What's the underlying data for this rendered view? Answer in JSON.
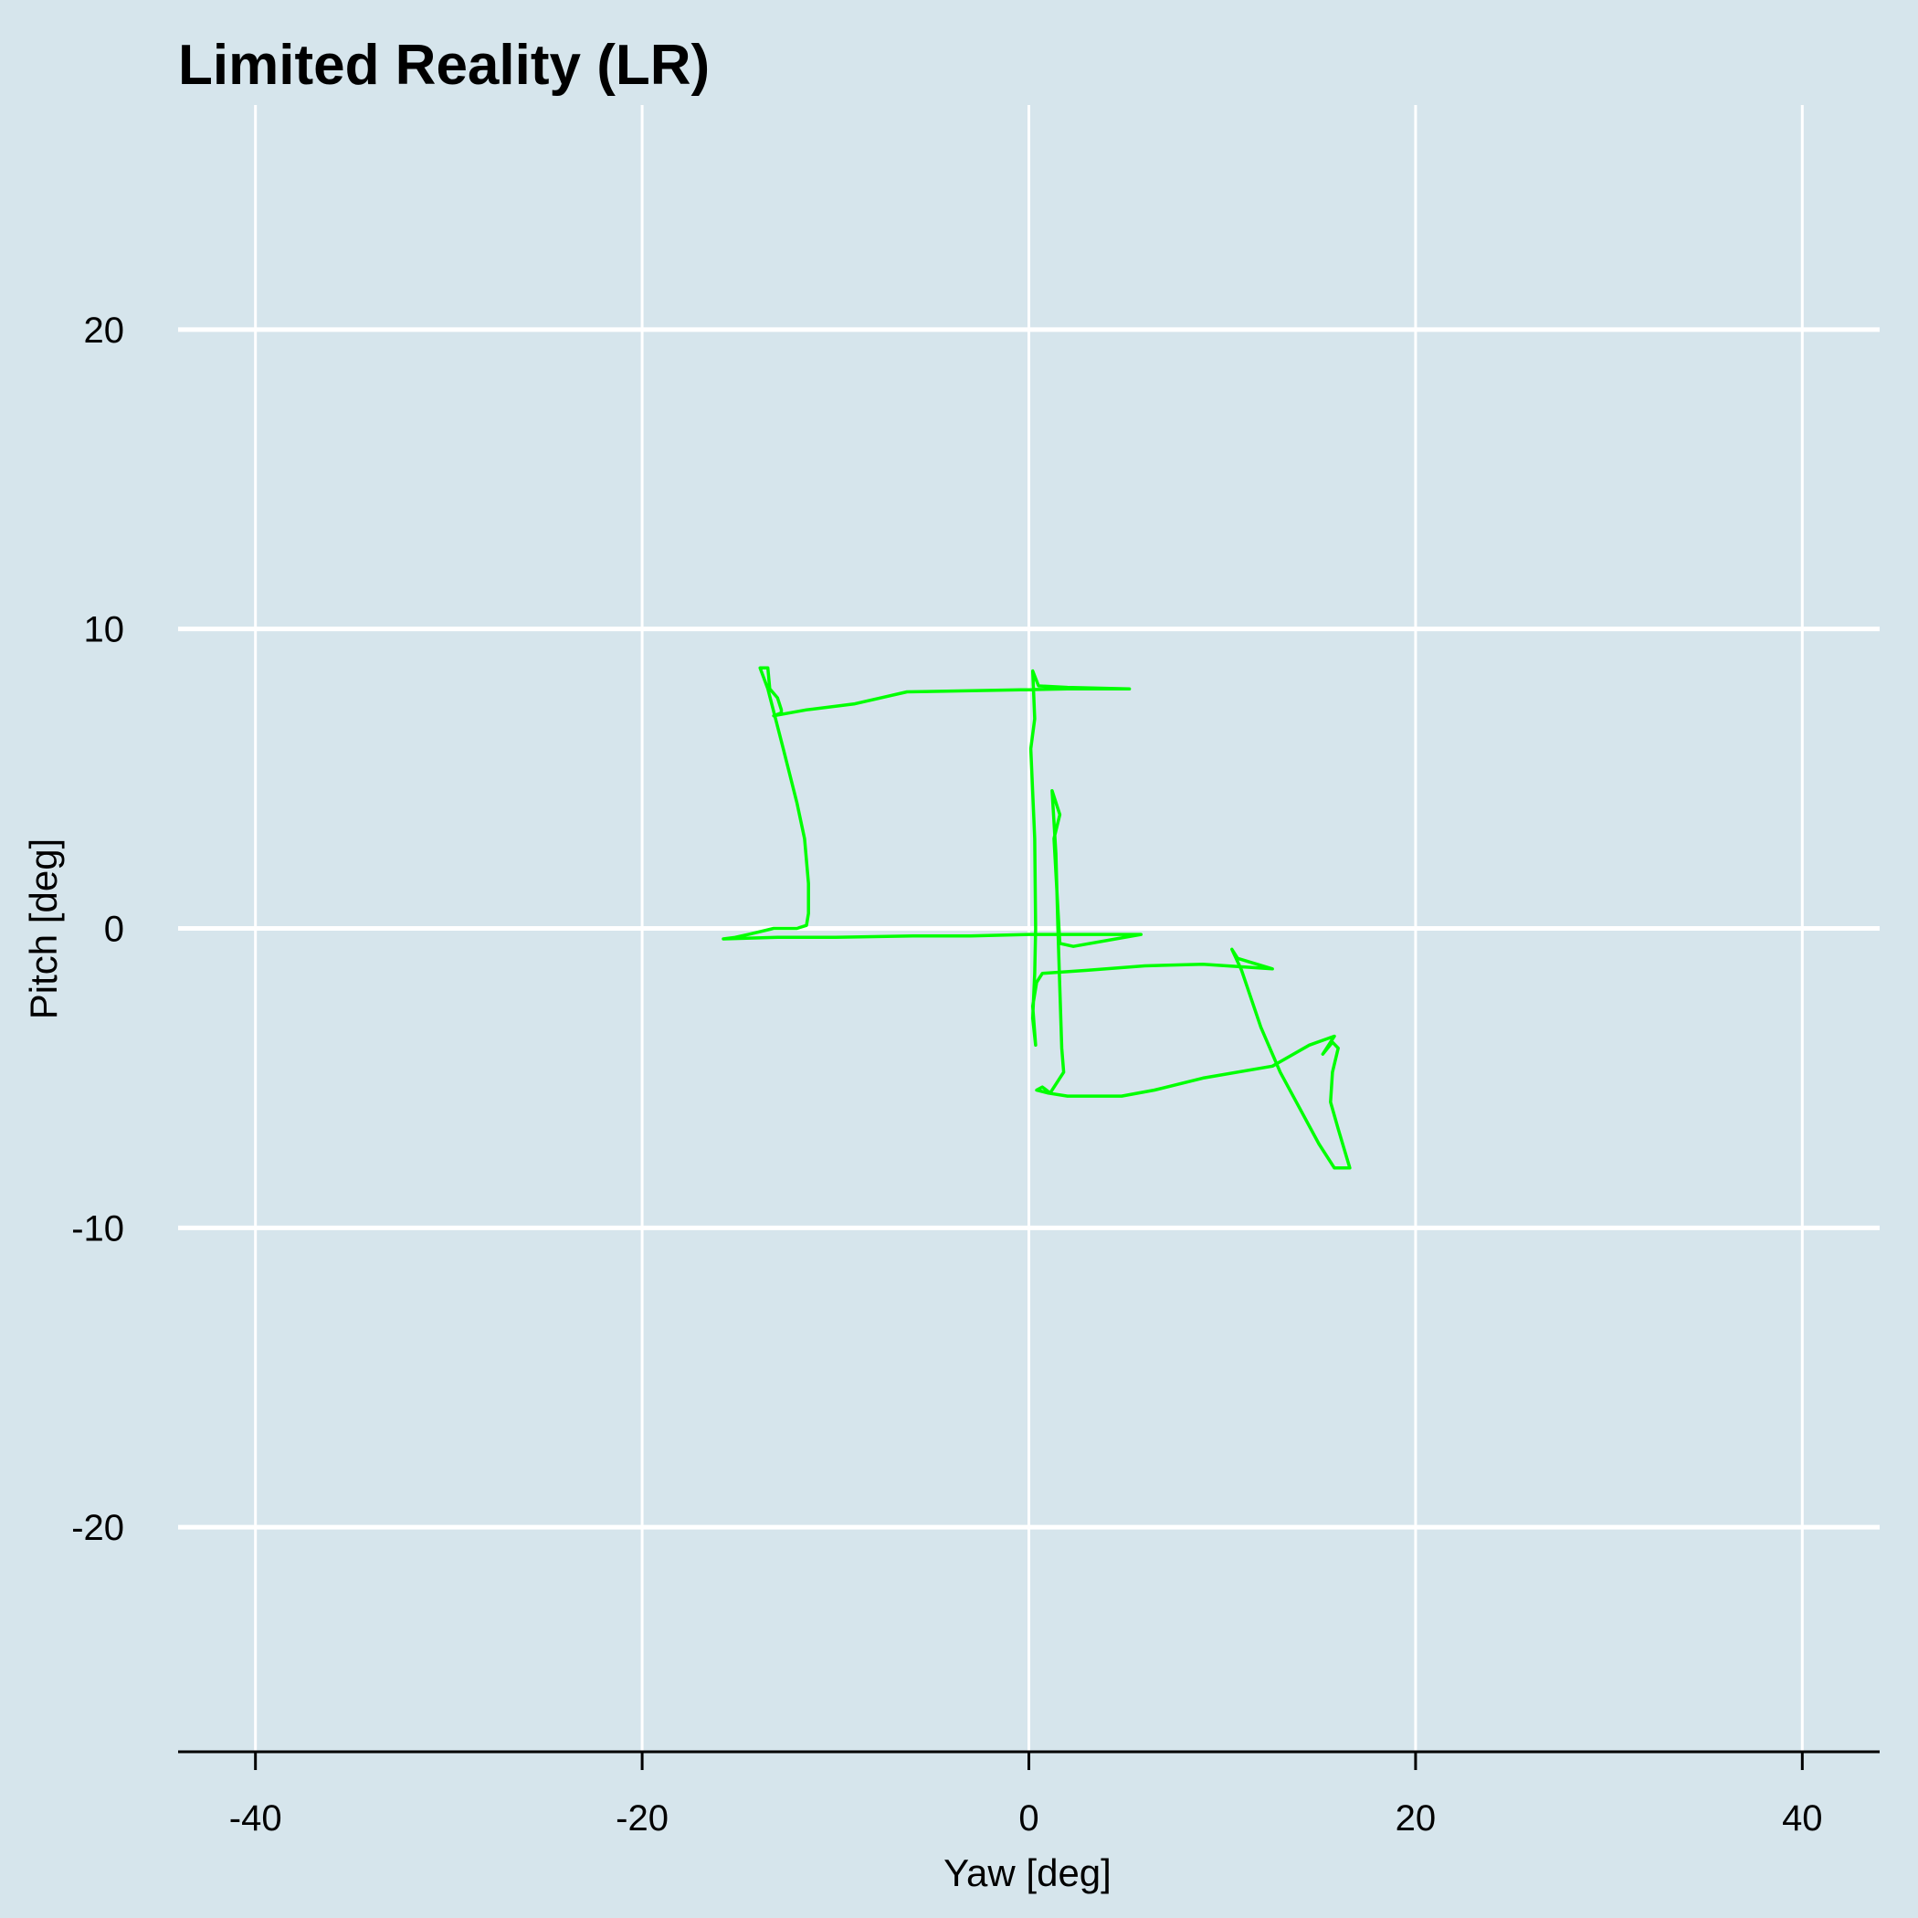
{
  "chart_data": {
    "type": "line",
    "title": "Limited Reality (LR)",
    "xlabel": "Yaw [deg]",
    "ylabel": "Pitch [deg]",
    "xlim": [
      -44,
      44
    ],
    "ylim": [
      -27.5,
      27.5
    ],
    "xticks": [
      -40,
      -20,
      0,
      20,
      40
    ],
    "yticks": [
      -20,
      -10,
      0,
      10,
      20
    ],
    "grid": true,
    "background_color": "#d6e5ec",
    "grid_color": "#ffffff",
    "series": [
      {
        "color": "#00ff00",
        "points": [
          [
            5.2,
            8.0
          ],
          [
            2.0,
            8.05
          ],
          [
            0.5,
            8.1
          ],
          [
            0.2,
            8.6
          ],
          [
            0.3,
            7.0
          ],
          [
            0.1,
            6.0
          ],
          [
            0.3,
            3.0
          ],
          [
            0.35,
            0.0
          ],
          [
            0.3,
            -1.5
          ],
          [
            0.2,
            -3.0
          ],
          [
            0.35,
            -3.9
          ],
          [
            0.2,
            -2.6
          ],
          [
            0.4,
            -1.8
          ],
          [
            0.7,
            -1.5
          ],
          [
            3.0,
            -1.4
          ],
          [
            6.0,
            -1.25
          ],
          [
            9.0,
            -1.2
          ],
          [
            12.6,
            -1.35
          ],
          [
            10.8,
            -1.0
          ],
          [
            10.5,
            -0.7
          ],
          [
            11.0,
            -1.4
          ],
          [
            12.0,
            -3.3
          ],
          [
            13.0,
            -4.8
          ],
          [
            14.0,
            -6.0
          ],
          [
            15.0,
            -7.2
          ],
          [
            15.8,
            -8.0
          ],
          [
            16.6,
            -8.0
          ],
          [
            16.0,
            -6.7
          ],
          [
            15.6,
            -5.8
          ],
          [
            15.7,
            -4.8
          ],
          [
            16.0,
            -4.0
          ],
          [
            15.7,
            -3.8
          ],
          [
            15.2,
            -4.2
          ],
          [
            15.8,
            -3.6
          ],
          [
            14.5,
            -3.9
          ],
          [
            12.6,
            -4.6
          ],
          [
            9.0,
            -5.0
          ],
          [
            6.5,
            -5.4
          ],
          [
            4.8,
            -5.6
          ],
          [
            2.0,
            -5.6
          ],
          [
            1.0,
            -5.5
          ],
          [
            0.4,
            -5.4
          ],
          [
            0.7,
            -5.3
          ],
          [
            1.1,
            -5.5
          ],
          [
            1.8,
            -4.8
          ],
          [
            1.7,
            -4.0
          ],
          [
            1.6,
            -2.0
          ],
          [
            1.5,
            0.0
          ],
          [
            1.4,
            2.5
          ],
          [
            1.2,
            4.6
          ],
          [
            1.6,
            3.8
          ],
          [
            1.3,
            3.0
          ],
          [
            1.6,
            -0.5
          ],
          [
            2.3,
            -0.6
          ],
          [
            5.8,
            -0.2
          ],
          [
            3.0,
            -0.2
          ],
          [
            0.0,
            -0.2
          ],
          [
            -3.0,
            -0.25
          ],
          [
            -6.0,
            -0.25
          ],
          [
            -10.0,
            -0.3
          ],
          [
            -13.0,
            -0.3
          ],
          [
            -15.8,
            -0.35
          ],
          [
            -15.2,
            -0.3
          ],
          [
            -14.5,
            -0.2
          ],
          [
            -13.2,
            0.0
          ],
          [
            -12.0,
            0.0
          ],
          [
            -11.5,
            0.1
          ],
          [
            -11.4,
            0.5
          ],
          [
            -11.4,
            1.5
          ],
          [
            -11.6,
            3.0
          ],
          [
            -12.0,
            4.2
          ],
          [
            -12.7,
            6.0
          ],
          [
            -13.5,
            8.0
          ],
          [
            -13.9,
            8.7
          ],
          [
            -13.5,
            8.7
          ],
          [
            -13.4,
            8.0
          ],
          [
            -13.0,
            7.7
          ],
          [
            -12.8,
            7.3
          ],
          [
            -12.8,
            7.2
          ],
          [
            -13.2,
            7.1
          ],
          [
            -11.5,
            7.3
          ],
          [
            -9.0,
            7.5
          ],
          [
            -6.3,
            7.9
          ],
          [
            -2.0,
            7.95
          ],
          [
            2.0,
            8.0
          ],
          [
            5.2,
            8.0
          ]
        ]
      }
    ]
  }
}
